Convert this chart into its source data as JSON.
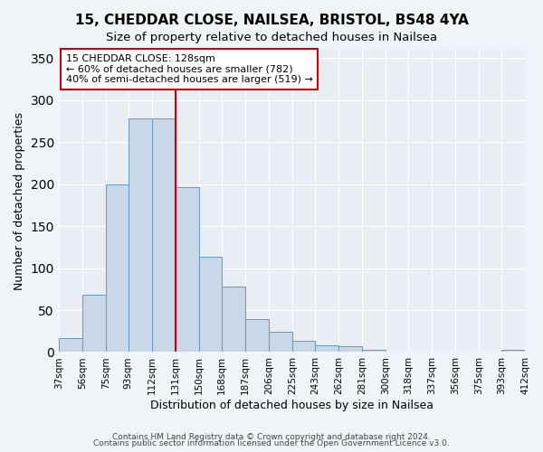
{
  "title": "15, CHEDDAR CLOSE, NAILSEA, BRISTOL, BS48 4YA",
  "subtitle": "Size of property relative to detached houses in Nailsea",
  "xlabel": "Distribution of detached houses by size in Nailsea",
  "ylabel": "Number of detached properties",
  "bar_values": [
    17,
    68,
    200,
    278,
    278,
    196,
    113,
    78,
    39,
    24,
    13,
    8,
    7,
    3,
    1,
    1,
    1,
    1,
    1,
    3
  ],
  "tick_labels": [
    "37sqm",
    "56sqm",
    "75sqm",
    "93sqm",
    "112sqm",
    "131sqm",
    "150sqm",
    "168sqm",
    "187sqm",
    "206sqm",
    "225sqm",
    "243sqm",
    "262sqm",
    "281sqm",
    "300sqm",
    "318sqm",
    "337sqm",
    "356sqm",
    "375sqm",
    "393sqm",
    "412sqm"
  ],
  "tick_positions": [
    37,
    56,
    75,
    93,
    112,
    131,
    150,
    168,
    187,
    206,
    225,
    243,
    262,
    281,
    300,
    318,
    337,
    356,
    375,
    393,
    412
  ],
  "bar_color": "#c8d8e8",
  "bar_edgecolor": "#6699bb",
  "vline_x": 131,
  "vline_color": "#cc0000",
  "annotation_title": "15 CHEDDAR CLOSE: 128sqm",
  "annotation_line1": "← 60% of detached houses are smaller (782)",
  "annotation_line2": "40% of semi-detached houses are larger (519) →",
  "annotation_box_edgecolor": "#cc0000",
  "ylim": [
    0,
    360
  ],
  "yticks": [
    0,
    50,
    100,
    150,
    200,
    250,
    300,
    350
  ],
  "footer1": "Contains HM Land Registry data © Crown copyright and database right 2024.",
  "footer2": "Contains public sector information licensed under the Open Government Licence v3.0.",
  "bg_color": "#f0f4f8",
  "plot_bg_color": "#e8eef4"
}
